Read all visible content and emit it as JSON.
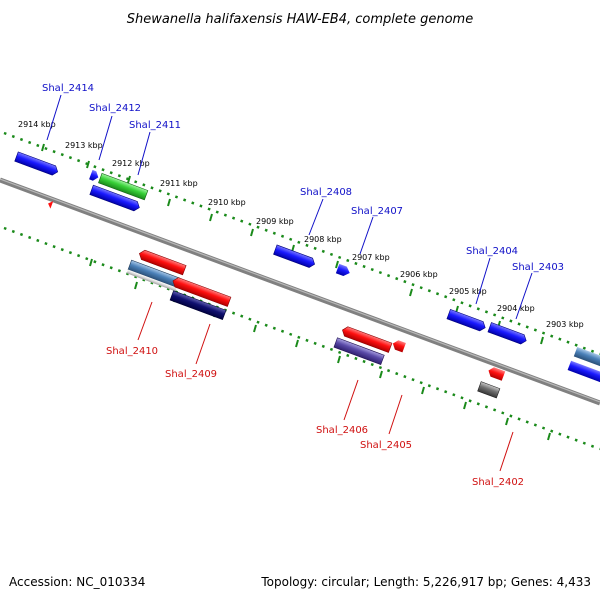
{
  "header": {
    "title": "Shewanella halifaxensis HAW-EB4, complete genome"
  },
  "footer": {
    "accession": "Accession: NC_010334",
    "summary": "Topology: circular; Length: 5,226,917 bp; Genes: 4,433"
  },
  "scale_labels": [
    "2914 kbp",
    "2913 kbp",
    "2912 kbp",
    "2911 kbp",
    "2910 kbp",
    "2909 kbp",
    "2908 kbp",
    "2907 kbp",
    "2906 kbp",
    "2905 kbp",
    "2904 kbp",
    "2903 kbp"
  ],
  "genes_top": [
    {
      "label": "Shal_2414",
      "color": "#1010c8"
    },
    {
      "label": "Shal_2412",
      "color": "#1010c8"
    },
    {
      "label": "Shal_2411",
      "color": "#1010c8"
    },
    {
      "label": "Shal_2408",
      "color": "#1010c8"
    },
    {
      "label": "Shal_2407",
      "color": "#1010c8"
    },
    {
      "label": "Shal_2404",
      "color": "#1010c8"
    },
    {
      "label": "Shal_2403",
      "color": "#1010c8"
    }
  ],
  "genes_bottom": [
    {
      "label": "Shal_2410",
      "color": "#d01010"
    },
    {
      "label": "Shal_2409",
      "color": "#d01010"
    },
    {
      "label": "Shal_2406",
      "color": "#d01010"
    },
    {
      "label": "Shal_2405",
      "color": "#d01010"
    },
    {
      "label": "Shal_2402",
      "color": "#d01010"
    }
  ]
}
